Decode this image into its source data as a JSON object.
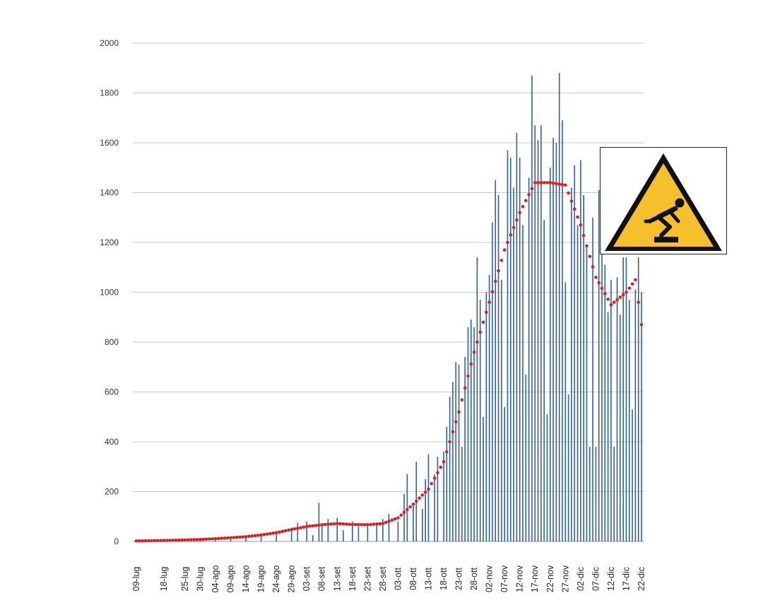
{
  "chart_data": {
    "type": "bar",
    "title": "",
    "xlabel": "",
    "ylabel": "",
    "ylim": [
      0,
      2000
    ],
    "yticks": [
      0,
      200,
      400,
      600,
      800,
      1000,
      1200,
      1400,
      1600,
      1800,
      2000
    ],
    "grid": "horizontal",
    "x_tick_labels": [
      "09-lug",
      "18-lug",
      "25-lug",
      "30-lug",
      "04-ago",
      "09-ago",
      "14-ago",
      "19-ago",
      "24-ago",
      "29-ago",
      "03-set",
      "08-set",
      "13-set",
      "18-set",
      "23-set",
      "28-set",
      "03-ott",
      "08-ott",
      "13-ott",
      "18-ott",
      "23-ott",
      "28-ott",
      "02-nov",
      "07-nov",
      "12-nov",
      "17-nov",
      "22-nov",
      "27-nov",
      "02-dic",
      "07-dic",
      "12-dic",
      "17-dic",
      "22-dic"
    ],
    "series": [
      {
        "kind": "bar",
        "color": "#2e5fa8",
        "points": [
          [
            "09-lug",
            2
          ],
          [
            "18-lug",
            3
          ],
          [
            "25-lug",
            5
          ],
          [
            "30-lug",
            8
          ],
          [
            "04-ago",
            10
          ],
          [
            "09-ago",
            15
          ],
          [
            "14-ago",
            18
          ],
          [
            "19-ago",
            22
          ],
          [
            "24-ago",
            35
          ],
          [
            "29-ago",
            55
          ],
          [
            "31-ago",
            75
          ],
          [
            "03-set",
            80
          ],
          [
            "05-set",
            25
          ],
          [
            "07-set",
            155
          ],
          [
            "08-set",
            70
          ],
          [
            "10-set",
            90
          ],
          [
            "13-set",
            95
          ],
          [
            "15-set",
            45
          ],
          [
            "18-set",
            80
          ],
          [
            "20-set",
            60
          ],
          [
            "23-set",
            75
          ],
          [
            "26-set",
            70
          ],
          [
            "28-set",
            90
          ],
          [
            "30-set",
            110
          ],
          [
            "03-ott",
            80
          ],
          [
            "05-ott",
            190
          ],
          [
            "06-ott",
            270
          ],
          [
            "08-ott",
            150
          ],
          [
            "09-ott",
            320
          ],
          [
            "11-ott",
            130
          ],
          [
            "12-ott",
            250
          ],
          [
            "13-ott",
            350
          ],
          [
            "15-ott",
            270
          ],
          [
            "16-ott",
            340
          ],
          [
            "18-ott",
            360
          ],
          [
            "19-ott",
            460
          ],
          [
            "20-ott",
            580
          ],
          [
            "21-ott",
            640
          ],
          [
            "22-ott",
            720
          ],
          [
            "23-ott",
            710
          ],
          [
            "24-ott",
            380
          ],
          [
            "25-ott",
            740
          ],
          [
            "26-ott",
            860
          ],
          [
            "27-ott",
            890
          ],
          [
            "28-ott",
            860
          ],
          [
            "29-ott",
            1140
          ],
          [
            "30-ott",
            970
          ],
          [
            "31-ott",
            500
          ],
          [
            "01-nov",
            1000
          ],
          [
            "02-nov",
            1070
          ],
          [
            "03-nov",
            1280
          ],
          [
            "04-nov",
            1450
          ],
          [
            "05-nov",
            1390
          ],
          [
            "06-nov",
            1050
          ],
          [
            "07-nov",
            540
          ],
          [
            "08-nov",
            1570
          ],
          [
            "09-nov",
            1540
          ],
          [
            "10-nov",
            1420
          ],
          [
            "11-nov",
            1640
          ],
          [
            "12-nov",
            1540
          ],
          [
            "13-nov",
            1270
          ],
          [
            "14-nov",
            670
          ],
          [
            "15-nov",
            1460
          ],
          [
            "16-nov",
            1870
          ],
          [
            "17-nov",
            1670
          ],
          [
            "18-nov",
            1610
          ],
          [
            "19-nov",
            1670
          ],
          [
            "20-nov",
            1290
          ],
          [
            "21-nov",
            510
          ],
          [
            "22-nov",
            1500
          ],
          [
            "23-nov",
            1620
          ],
          [
            "24-nov",
            1600
          ],
          [
            "25-nov",
            1880
          ],
          [
            "26-nov",
            1690
          ],
          [
            "27-nov",
            1040
          ],
          [
            "28-nov",
            590
          ],
          [
            "29-nov",
            1420
          ],
          [
            "30-nov",
            1510
          ],
          [
            "01-dic",
            1270
          ],
          [
            "02-dic",
            1530
          ],
          [
            "03-dic",
            1390
          ],
          [
            "04-dic",
            1190
          ],
          [
            "05-dic",
            380
          ],
          [
            "06-dic",
            1300
          ],
          [
            "07-dic",
            380
          ],
          [
            "08-dic",
            1410
          ],
          [
            "09-dic",
            1200
          ],
          [
            "10-dic",
            1110
          ],
          [
            "11-dic",
            920
          ],
          [
            "12-dic",
            1050
          ],
          [
            "13-dic",
            380
          ],
          [
            "14-dic",
            1060
          ],
          [
            "15-dic",
            910
          ],
          [
            "16-dic",
            1140
          ],
          [
            "17-dic",
            1140
          ],
          [
            "18-dic",
            970
          ],
          [
            "19-dic",
            530
          ],
          [
            "20-dic",
            1010
          ],
          [
            "21-dic",
            1140
          ],
          [
            "22-dic",
            1000
          ]
        ]
      },
      {
        "kind": "moving-average",
        "color": "#d62020",
        "style": "dotted",
        "points": [
          [
            "09-lug",
            2
          ],
          [
            "18-lug",
            4
          ],
          [
            "25-lug",
            6
          ],
          [
            "30-lug",
            8
          ],
          [
            "04-ago",
            11
          ],
          [
            "09-ago",
            15
          ],
          [
            "14-ago",
            19
          ],
          [
            "19-ago",
            26
          ],
          [
            "24-ago",
            35
          ],
          [
            "29-ago",
            48
          ],
          [
            "03-set",
            60
          ],
          [
            "08-set",
            67
          ],
          [
            "13-set",
            72
          ],
          [
            "18-set",
            68
          ],
          [
            "23-set",
            67
          ],
          [
            "28-set",
            72
          ],
          [
            "03-ott",
            95
          ],
          [
            "08-ott",
            150
          ],
          [
            "13-ott",
            210
          ],
          [
            "18-ott",
            320
          ],
          [
            "23-ott",
            520
          ],
          [
            "28-ott",
            760
          ],
          [
            "02-nov",
            960
          ],
          [
            "07-nov",
            1170
          ],
          [
            "12-nov",
            1320
          ],
          [
            "17-nov",
            1440
          ],
          [
            "22-nov",
            1440
          ],
          [
            "27-nov",
            1430
          ],
          [
            "02-dic",
            1270
          ],
          [
            "07-dic",
            1060
          ],
          [
            "12-dic",
            950
          ],
          [
            "17-dic",
            1000
          ],
          [
            "20-dic",
            1050
          ],
          [
            "22-dic",
            870
          ]
        ]
      }
    ]
  },
  "overlay": {
    "warning_sign": {
      "icon": "trip-hazard-warning-icon",
      "colors": {
        "fill": "#f5c02b",
        "border": "#111111"
      }
    }
  }
}
